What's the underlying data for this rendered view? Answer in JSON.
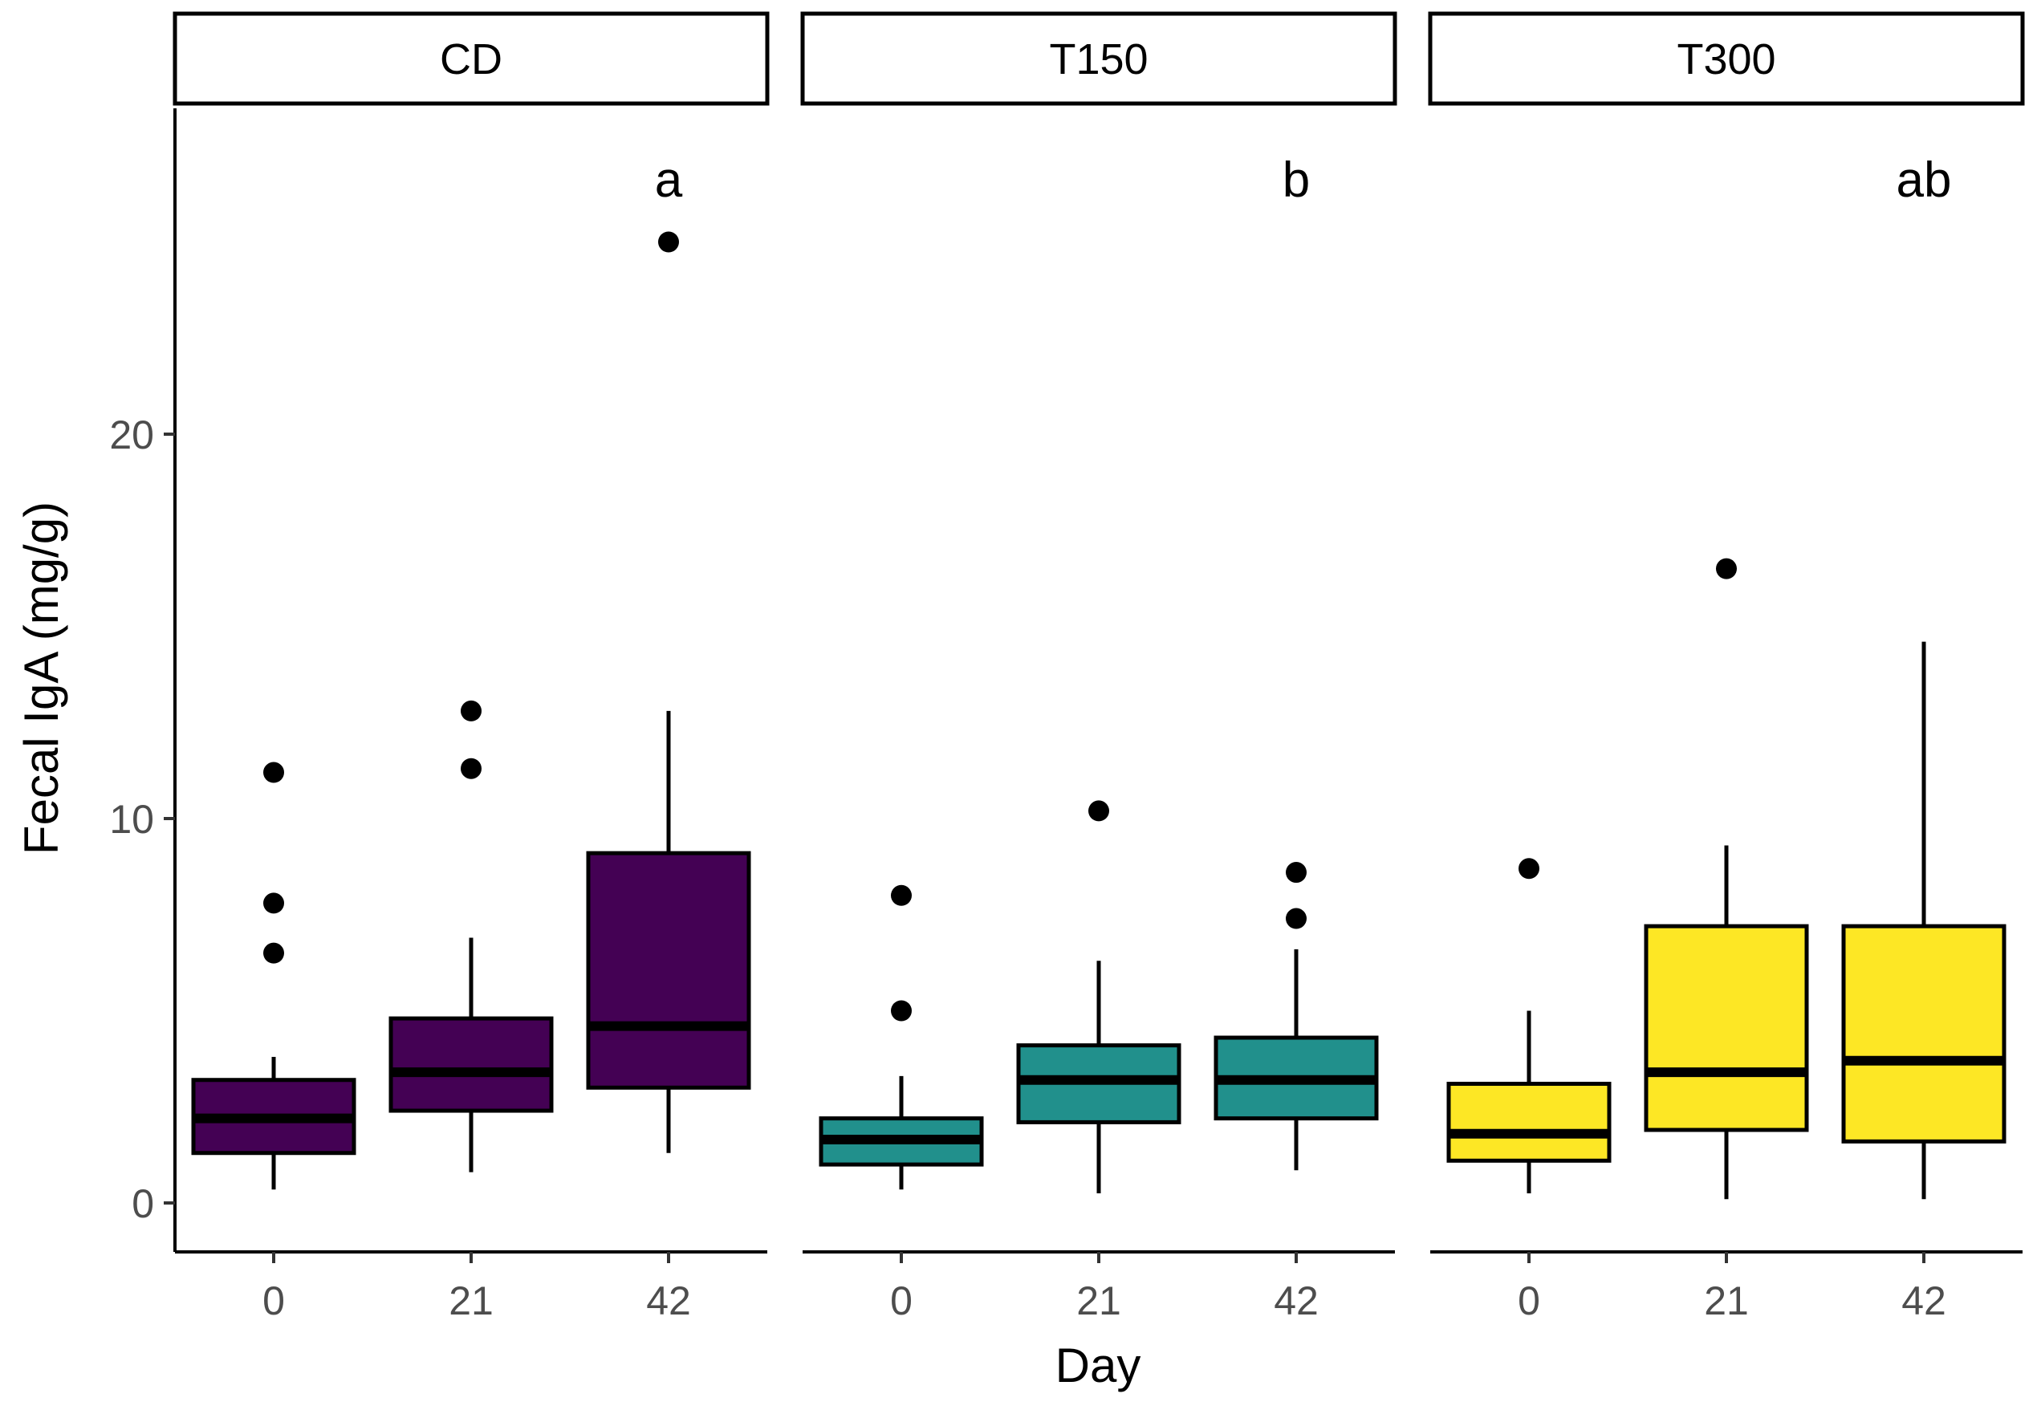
{
  "chart_data": {
    "type": "boxplot",
    "xlabel": "Day",
    "ylabel": "Fecal IgA (mg/g)",
    "ylim": [
      -1.2,
      28.5
    ],
    "yticks": [
      0,
      10,
      20
    ],
    "categories": [
      "0",
      "21",
      "42"
    ],
    "panels": [
      {
        "name": "CD",
        "letter": "a",
        "color": "#440154",
        "boxes": [
          {
            "day": "0",
            "whisker_low": 0.35,
            "q1": 1.3,
            "median": 2.2,
            "q3": 3.2,
            "whisker_high": 3.8,
            "outliers": [
              11.2,
              7.8,
              6.5
            ]
          },
          {
            "day": "21",
            "whisker_low": 0.8,
            "q1": 2.4,
            "median": 3.4,
            "q3": 4.8,
            "whisker_high": 6.9,
            "outliers": [
              12.8,
              11.3
            ]
          },
          {
            "day": "42",
            "whisker_low": 1.3,
            "q1": 3.0,
            "median": 4.6,
            "q3": 9.1,
            "whisker_high": 12.8,
            "outliers": [
              25.0
            ]
          }
        ]
      },
      {
        "name": "T150",
        "letter": "b",
        "color": "#21908C",
        "boxes": [
          {
            "day": "0",
            "whisker_low": 0.35,
            "q1": 1.0,
            "median": 1.65,
            "q3": 2.2,
            "whisker_high": 3.3,
            "outliers": [
              8.0,
              5.0
            ]
          },
          {
            "day": "21",
            "whisker_low": 0.25,
            "q1": 2.1,
            "median": 3.2,
            "q3": 4.1,
            "whisker_high": 6.3,
            "outliers": [
              10.2
            ]
          },
          {
            "day": "42",
            "whisker_low": 0.85,
            "q1": 2.2,
            "median": 3.2,
            "q3": 4.3,
            "whisker_high": 6.6,
            "outliers": [
              8.6,
              7.4
            ]
          }
        ]
      },
      {
        "name": "T300",
        "letter": "ab",
        "color": "#FDE725",
        "boxes": [
          {
            "day": "0",
            "whisker_low": 0.25,
            "q1": 1.1,
            "median": 1.8,
            "q3": 3.1,
            "whisker_high": 5.0,
            "outliers": [
              8.7
            ]
          },
          {
            "day": "21",
            "whisker_low": 0.1,
            "q1": 1.9,
            "median": 3.4,
            "q3": 7.2,
            "whisker_high": 9.3,
            "outliers": [
              16.5
            ]
          },
          {
            "day": "42",
            "whisker_low": 0.1,
            "q1": 1.6,
            "median": 3.7,
            "q3": 7.2,
            "whisker_high": 14.6,
            "outliers": []
          }
        ]
      }
    ]
  }
}
